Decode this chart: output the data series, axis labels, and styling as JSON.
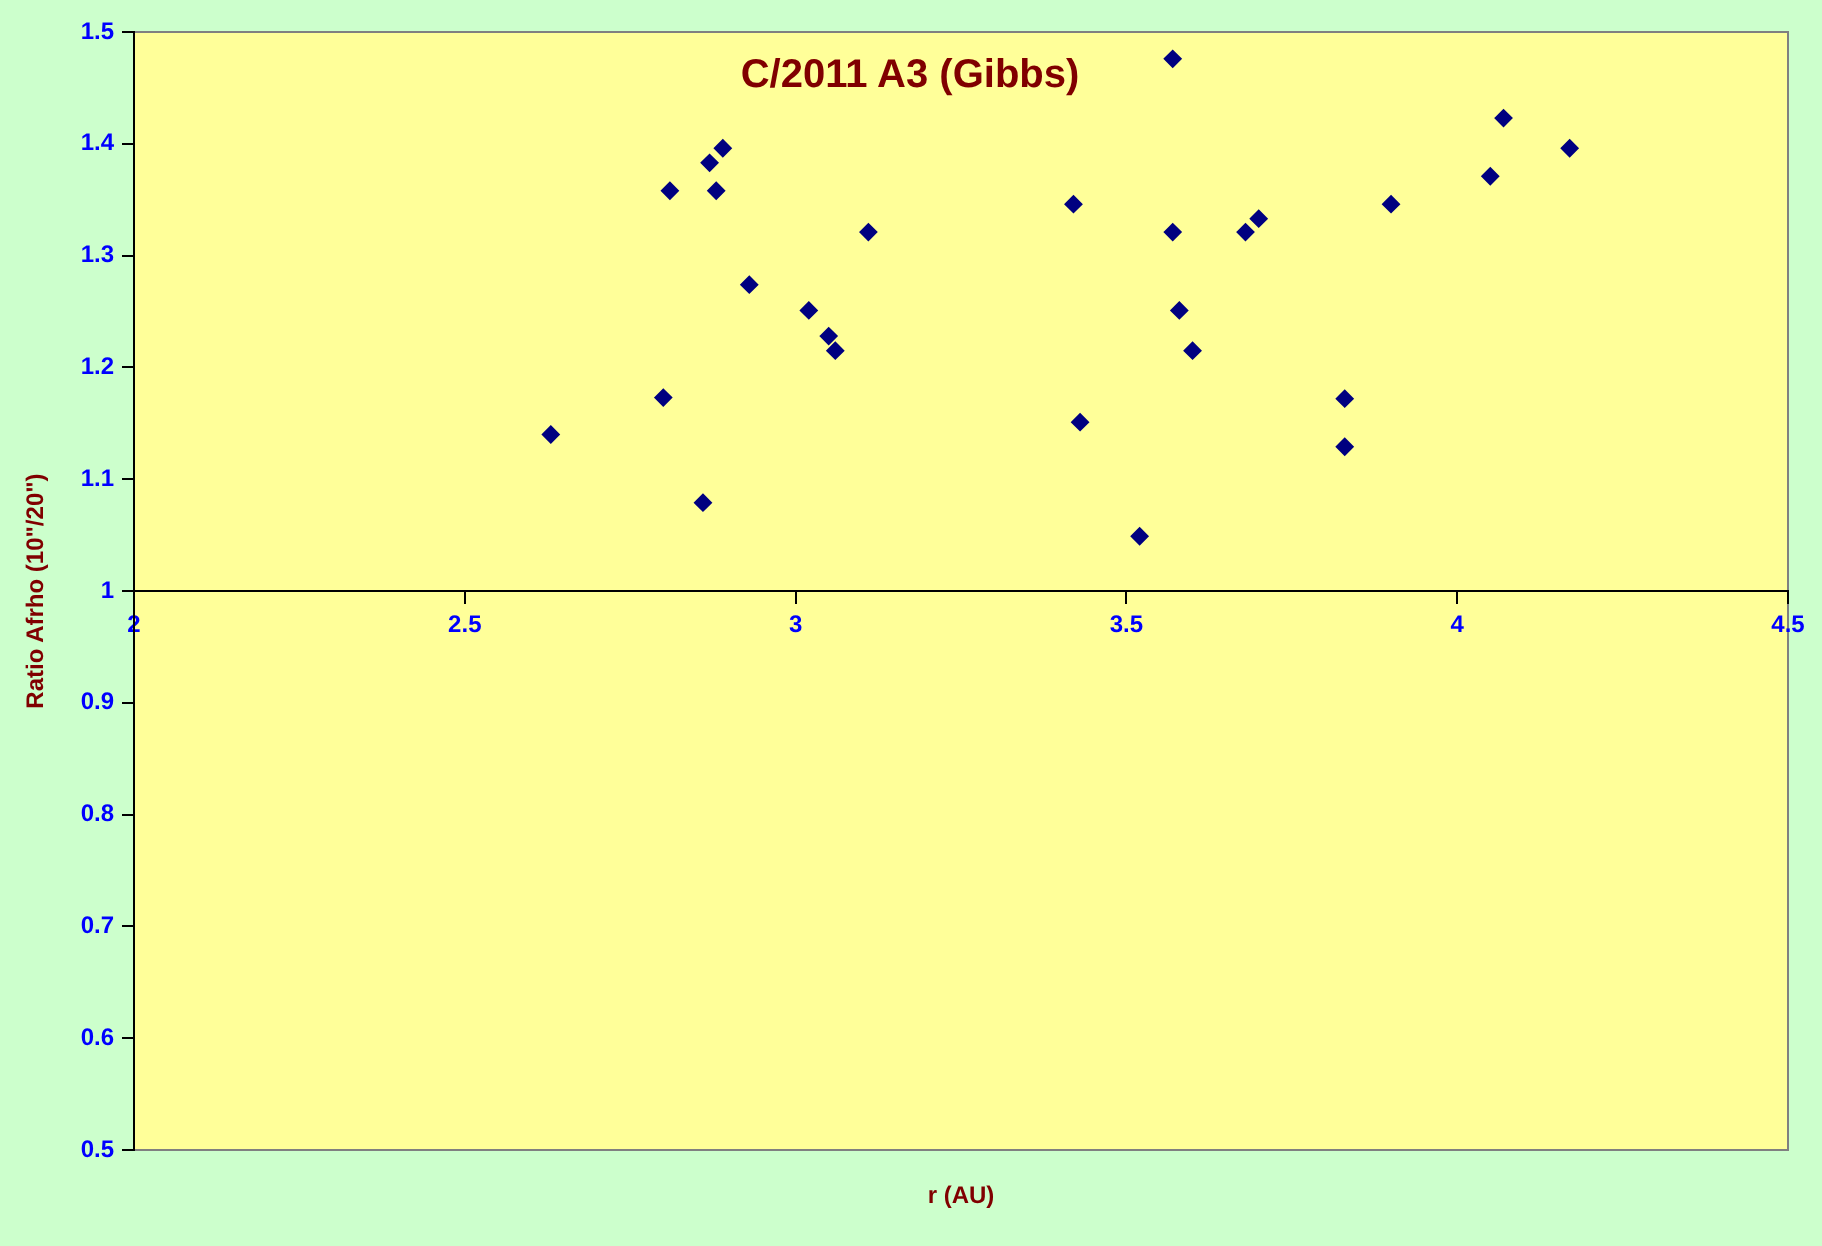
{
  "chart_data": {
    "type": "scatter",
    "title": "C/2011 A3 (Gibbs)",
    "xlabel": "r (AU)",
    "ylabel": "Ratio Afrho (10\"/20\")",
    "x": [
      2.63,
      2.8,
      2.81,
      2.86,
      2.87,
      2.89,
      2.88,
      2.93,
      3.02,
      3.05,
      3.06,
      3.11,
      3.57,
      3.42,
      3.43,
      3.52,
      3.57,
      3.58,
      3.6,
      3.68,
      3.7,
      3.83,
      3.83,
      3.9,
      4.05,
      4.07,
      4.17
    ],
    "series": [
      {
        "color": "#000080",
        "values": [
          1.14,
          1.173,
          1.358,
          1.079,
          1.383,
          1.396,
          1.358,
          1.274,
          1.251,
          1.228,
          1.215,
          1.321,
          1.476,
          1.346,
          1.151,
          1.049,
          1.321,
          1.251,
          1.215,
          1.321,
          1.333,
          1.172,
          1.129,
          1.346,
          1.371,
          1.423,
          1.396
        ]
      }
    ],
    "xlim": [
      2,
      4.5
    ],
    "xticks": [
      2,
      2.5,
      3,
      3.5,
      4,
      4.5
    ],
    "ylim": [
      0.5,
      1.5
    ],
    "yticks": [
      0.5,
      0.6,
      0.7,
      0.8,
      0.9,
      1,
      1.1,
      1.2,
      1.3,
      1.4,
      1.5
    ],
    "marker": "diamond",
    "grid": false,
    "legend": false
  }
}
